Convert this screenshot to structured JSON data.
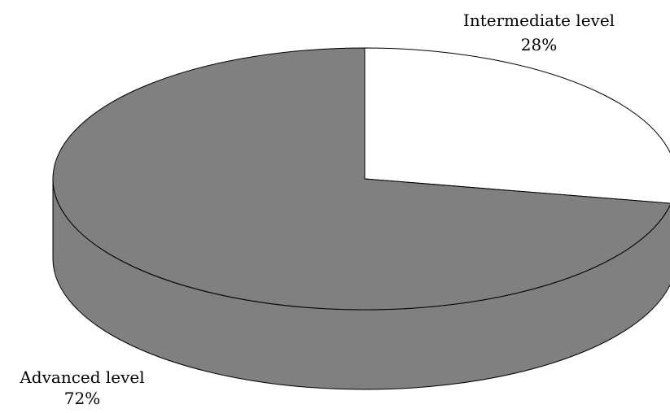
{
  "chart_data": {
    "type": "pie",
    "style": "3d",
    "slices": [
      {
        "label": "Intermediate level",
        "value": 28,
        "value_label": "28%",
        "color": "#ffffff"
      },
      {
        "label": "Advanced level",
        "value": 72,
        "value_label": "72%",
        "color": "#808080"
      }
    ],
    "outline_color": "#000000",
    "legend": "none"
  }
}
